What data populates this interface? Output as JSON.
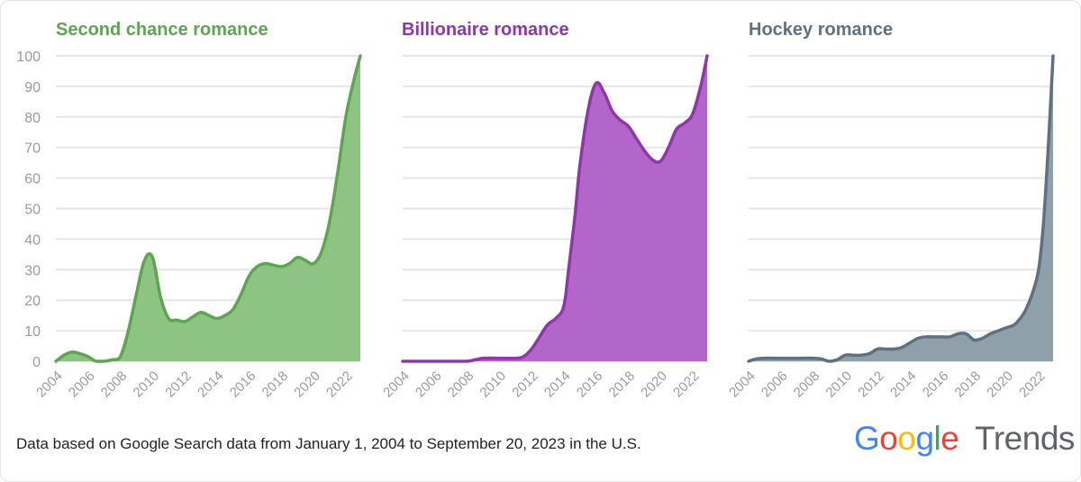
{
  "footnote": "Data based on Google Search data from January 1, 2004 to September 20, 2023 in the U.S.",
  "logo": {
    "google_letters": [
      "G",
      "o",
      "o",
      "g",
      "l",
      "e"
    ],
    "google_colors": [
      "#4285F4",
      "#EA4335",
      "#FBBC05",
      "#4285F4",
      "#34A853",
      "#EA4335"
    ],
    "trends": "Trends"
  },
  "chart_data": [
    {
      "type": "area",
      "title": "Second chance romance",
      "color": "#5ea551",
      "fill": "#8ec483",
      "ylim": [
        0,
        100
      ],
      "yticks": [
        "0",
        "10",
        "20",
        "30",
        "40",
        "50",
        "60",
        "70",
        "80",
        "90",
        "100"
      ],
      "xticks": [
        "2004",
        "2006",
        "2008",
        "2010",
        "2012",
        "2014",
        "2016",
        "2018",
        "2020",
        "2022"
      ],
      "xlim": [
        2004,
        2022.9
      ],
      "grid": true,
      "x": [
        2004,
        2004.5,
        2005,
        2005.5,
        2006,
        2006.5,
        2007,
        2007.5,
        2008,
        2008.5,
        2009,
        2009.5,
        2010,
        2010.5,
        2011,
        2011.5,
        2012,
        2012.5,
        2013,
        2013.5,
        2014,
        2014.5,
        2015,
        2015.5,
        2016,
        2016.5,
        2017,
        2017.5,
        2018,
        2018.5,
        2019,
        2019.5,
        2020,
        2020.5,
        2021,
        2021.5,
        2022,
        2022.5,
        2022.9
      ],
      "values": [
        0,
        2,
        3,
        2.5,
        1.5,
        0,
        0,
        0.5,
        1.5,
        10,
        22,
        33,
        34,
        21,
        14,
        13.5,
        13,
        14.5,
        16,
        15,
        14,
        15,
        17,
        22,
        28,
        31,
        32,
        31.5,
        31,
        32,
        34,
        33,
        32,
        36,
        46,
        62,
        80,
        92,
        100
      ]
    },
    {
      "type": "area",
      "title": "Billionaire romance",
      "color": "#8e36aa",
      "fill": "#b366c9",
      "ylim": [
        0,
        100
      ],
      "yticks": [
        "0",
        "10",
        "20",
        "30",
        "40",
        "50",
        "60",
        "70",
        "80",
        "90",
        "100"
      ],
      "xticks": [
        "2004",
        "2006",
        "2008",
        "2010",
        "2012",
        "2014",
        "2016",
        "2018",
        "2020",
        "2022"
      ],
      "xlim": [
        2004,
        2022.9
      ],
      "grid": true,
      "x": [
        2004,
        2005,
        2006,
        2007,
        2008,
        2008.5,
        2009,
        2010,
        2011,
        2011.5,
        2012,
        2012.5,
        2013,
        2013.5,
        2014,
        2014.3,
        2014.7,
        2015,
        2015.5,
        2016,
        2016.5,
        2017,
        2017.5,
        2018,
        2018.5,
        2019,
        2019.5,
        2020,
        2020.5,
        2021,
        2021.5,
        2022,
        2022.5,
        2022.9
      ],
      "values": [
        0,
        0,
        0,
        0,
        0,
        0.5,
        1,
        1,
        1,
        1.5,
        4,
        8,
        12,
        14,
        18,
        30,
        48,
        64,
        82,
        91,
        88,
        82,
        79,
        77,
        73,
        69,
        66,
        65.5,
        70,
        76,
        78,
        81,
        90,
        100
      ]
    },
    {
      "type": "area",
      "title": "Hockey romance",
      "color": "#5e7180",
      "fill": "#8fa0aa",
      "ylim": [
        0,
        100
      ],
      "yticks": [
        "0",
        "10",
        "20",
        "30",
        "40",
        "50",
        "60",
        "70",
        "80",
        "90",
        "100"
      ],
      "xticks": [
        "2004",
        "2006",
        "2008",
        "2010",
        "2012",
        "2014",
        "2016",
        "2018",
        "2020",
        "2022"
      ],
      "xlim": [
        2004,
        2022.9
      ],
      "grid": true,
      "x": [
        2004,
        2004.5,
        2005,
        2006,
        2007,
        2008,
        2008.5,
        2009,
        2009.5,
        2010,
        2010.5,
        2011,
        2011.5,
        2012,
        2012.5,
        2013,
        2013.5,
        2014,
        2014.5,
        2015,
        2015.5,
        2016,
        2016.5,
        2017,
        2017.5,
        2018,
        2018.5,
        2019,
        2019.5,
        2020,
        2020.5,
        2021,
        2021.3,
        2021.6,
        2022,
        2022.3,
        2022.6,
        2022.9
      ],
      "values": [
        0,
        0.8,
        1,
        1,
        1,
        1,
        0.8,
        0,
        0.5,
        2,
        2,
        2,
        2.5,
        4,
        4,
        4,
        4.5,
        6,
        7.5,
        8,
        8,
        8,
        8,
        9,
        9,
        7,
        7.5,
        9,
        10,
        11,
        12,
        15,
        18,
        22,
        30,
        45,
        70,
        100
      ]
    }
  ]
}
